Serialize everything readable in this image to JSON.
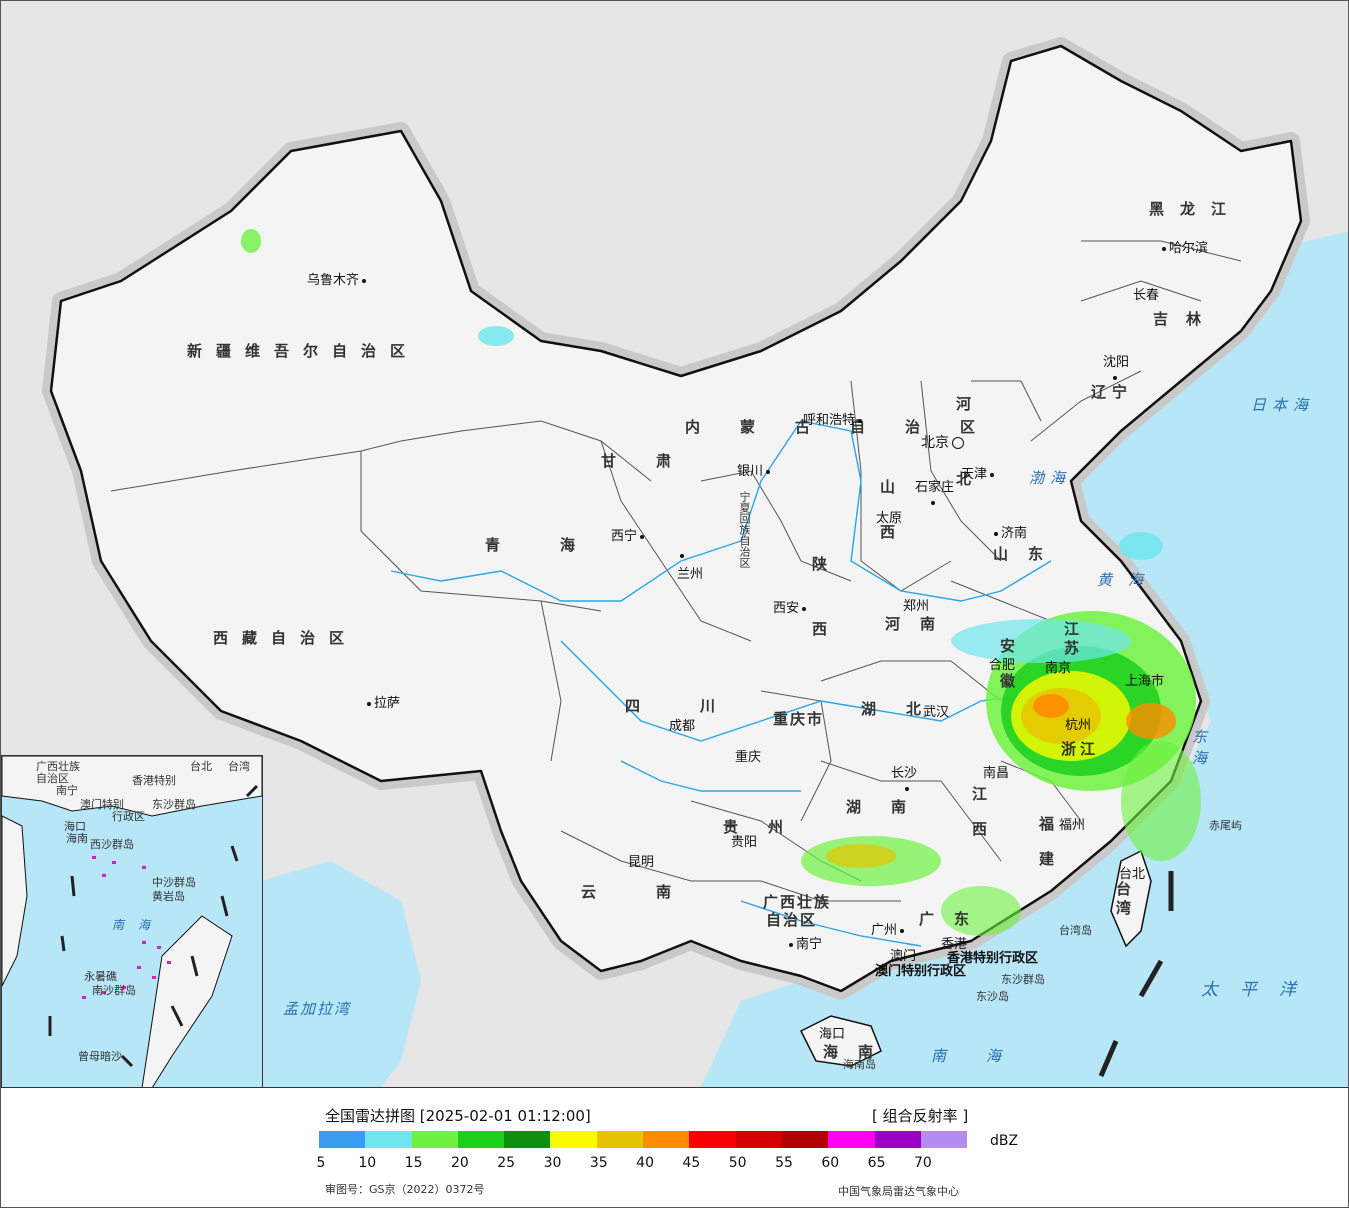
{
  "legend": {
    "title": "全国雷达拼图 [2025-02-01 01:12:00]",
    "product": "[ 组合反射率 ]",
    "unit": "dBZ",
    "ticks": [
      "5",
      "10",
      "15",
      "20",
      "25",
      "30",
      "35",
      "40",
      "45",
      "50",
      "55",
      "60",
      "65",
      "70"
    ],
    "colors": [
      "#3a9cf0",
      "#6de6ee",
      "#6df23f",
      "#1ccf1c",
      "#0e8f0e",
      "#fbfb00",
      "#e6c400",
      "#ff8c00",
      "#fa0000",
      "#d60000",
      "#b30000",
      "#ff00f5",
      "#9a00c8",
      "#b48cf0"
    ]
  },
  "footer": {
    "approval": "审图号：GS京（2022）0372号",
    "source": "中国气象局雷达气象中心"
  },
  "provinces": [
    {
      "name": "新疆维吾尔自治区"
    },
    {
      "name": "西藏自治区"
    },
    {
      "name": "青海"
    },
    {
      "name": "甘肃"
    },
    {
      "name": "四川"
    },
    {
      "name": "云南"
    },
    {
      "name": "贵州"
    },
    {
      "name": "广西壮族"
    },
    {
      "name": "自治区"
    },
    {
      "name": "广东"
    },
    {
      "name": "海南"
    },
    {
      "name": "湖南"
    },
    {
      "name": "湖北"
    },
    {
      "name": "江西"
    },
    {
      "name": "福建"
    },
    {
      "name": "浙江"
    },
    {
      "name": "安徽"
    },
    {
      "name": "江苏"
    },
    {
      "name": "河南"
    },
    {
      "name": "山东"
    },
    {
      "name": "陕西"
    },
    {
      "name": "山西"
    },
    {
      "name": "河北"
    },
    {
      "name": "内蒙古自治区"
    },
    {
      "name": "辽宁"
    },
    {
      "name": "吉林"
    },
    {
      "name": "黑龙江"
    },
    {
      "name": "重庆市"
    },
    {
      "name": "宁夏回族自治区"
    },
    {
      "name": "台湾"
    }
  ],
  "cities": [
    {
      "name": "乌鲁木齐"
    },
    {
      "name": "拉萨"
    },
    {
      "name": "西宁"
    },
    {
      "name": "兰州"
    },
    {
      "name": "银川"
    },
    {
      "name": "呼和浩特"
    },
    {
      "name": "北京"
    },
    {
      "name": "天津"
    },
    {
      "name": "石家庄"
    },
    {
      "name": "太原"
    },
    {
      "name": "济南"
    },
    {
      "name": "郑州"
    },
    {
      "name": "西安"
    },
    {
      "name": "成都"
    },
    {
      "name": "重庆"
    },
    {
      "name": "贵阳"
    },
    {
      "name": "昆明"
    },
    {
      "name": "南宁"
    },
    {
      "name": "广州"
    },
    {
      "name": "澳门"
    },
    {
      "name": "香港"
    },
    {
      "name": "海口"
    },
    {
      "name": "长沙"
    },
    {
      "name": "武汉"
    },
    {
      "name": "南昌"
    },
    {
      "name": "福州"
    },
    {
      "name": "杭州"
    },
    {
      "name": "合肥"
    },
    {
      "name": "南京"
    },
    {
      "name": "上海市"
    },
    {
      "name": "沈阳"
    },
    {
      "name": "长春"
    },
    {
      "name": "哈尔滨"
    },
    {
      "name": "台北"
    }
  ],
  "seas": [
    {
      "name": "日本海"
    },
    {
      "name": "渤海"
    },
    {
      "name": "黄海"
    },
    {
      "name": "东海"
    },
    {
      "name": "太平洋"
    },
    {
      "name": "南海"
    },
    {
      "name": "孟加拉湾"
    }
  ],
  "islands": [
    {
      "name": "赤尾屿"
    },
    {
      "name": "台湾岛"
    },
    {
      "name": "东沙群岛"
    },
    {
      "name": "东沙岛"
    },
    {
      "name": "海南岛"
    },
    {
      "name": "香港特别行政区"
    },
    {
      "name": "澳门特别行政区"
    }
  ],
  "inset": {
    "labels": [
      "广西壮族",
      "自治区",
      "南宁",
      "香港特别",
      "澳门特别",
      "行政区",
      "东沙群岛",
      "海口",
      "海南",
      "西沙群岛",
      "中沙群岛",
      "黄岩岛",
      "南海",
      "南沙群岛",
      "永暑礁",
      "曾母暗沙",
      "台湾",
      "台北"
    ]
  }
}
